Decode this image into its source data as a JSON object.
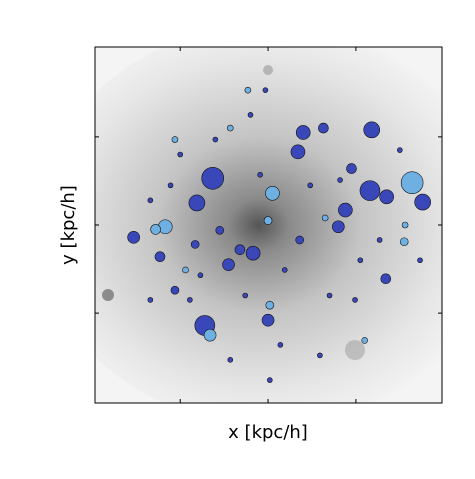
{
  "chart_data": {
    "type": "scatter",
    "x_label": "x [kpc/h]",
    "y_label": "y [kpc/h]",
    "xlim": [
      -1.97,
      1.98
    ],
    "ylim": [
      -2.02,
      2.02
    ],
    "xticks": [
      -1,
      0,
      1
    ],
    "yticks": [
      -1,
      0,
      1
    ],
    "series": [
      {
        "color": "#3a47b8",
        "x": [
          -0.63,
          -0.81,
          0.34,
          1.18,
          1.16,
          1.76,
          1.35,
          0.88,
          -1.53,
          -0.72,
          -0.17,
          -0.45,
          -1.23,
          0.0,
          0.4,
          0.63,
          0.95,
          1.34,
          -0.32,
          0.8,
          -0.83,
          0.36,
          -1.06,
          -0.55,
          -1.0,
          -0.2,
          0.7,
          -1.34,
          0.19,
          0.59,
          -0.43,
          1.5,
          1.73,
          1.05,
          -0.26,
          -0.89,
          0.48,
          -0.09,
          -0.6,
          -1.11,
          0.99,
          0.14,
          0.82,
          -0.77,
          -0.03,
          1.27,
          -1.34,
          0.02
        ],
        "values": [
          0.53,
          0.25,
          0.83,
          1.08,
          0.39,
          0.26,
          0.32,
          0.17,
          -0.14,
          -1.14,
          -0.32,
          -0.45,
          -0.36,
          -1.08,
          1.05,
          1.1,
          0.64,
          -0.61,
          -0.28,
          -0.02,
          -0.22,
          -0.17,
          -0.74,
          -0.06,
          0.8,
          1.25,
          -0.8,
          0.28,
          -0.51,
          -1.48,
          -1.53,
          0.85,
          -0.4,
          -0.4,
          -0.8,
          -0.85,
          0.45,
          0.57,
          0.97,
          0.45,
          -0.85,
          -1.36,
          0.51,
          -0.57,
          1.53,
          -0.17,
          -0.85,
          -1.76
        ],
        "sizes": [
          11,
          8,
          7,
          8,
          10,
          8,
          7,
          7,
          6,
          10,
          7,
          6,
          5,
          6,
          7,
          5,
          5,
          5,
          5,
          6,
          4,
          4,
          4,
          4,
          2.5,
          2.5,
          2.5,
          2.5,
          2.5,
          2.5,
          2.5,
          2.5,
          2.5,
          2.5,
          2.5,
          2.5,
          2.5,
          2.5,
          2.5,
          2.5,
          2.5,
          2.5,
          2.5,
          2.5,
          2.5,
          2.5,
          2.5,
          2.5
        ]
      },
      {
        "color": "#6fb0e2",
        "x": [
          1.64,
          0.05,
          -1.17,
          -1.28,
          -0.66,
          0.0,
          1.55,
          0.02,
          -0.94,
          1.1,
          -0.43,
          -0.23,
          0.65,
          -1.06,
          1.56
        ],
        "values": [
          0.48,
          0.36,
          -0.02,
          -0.05,
          -1.25,
          0.05,
          -0.19,
          -0.91,
          -0.51,
          -1.31,
          1.1,
          1.53,
          0.08,
          0.97,
          0.0
        ],
        "sizes": [
          11,
          7,
          7,
          5,
          6,
          4,
          4,
          4,
          3,
          3,
          3,
          3,
          3,
          3,
          3
        ]
      }
    ]
  }
}
